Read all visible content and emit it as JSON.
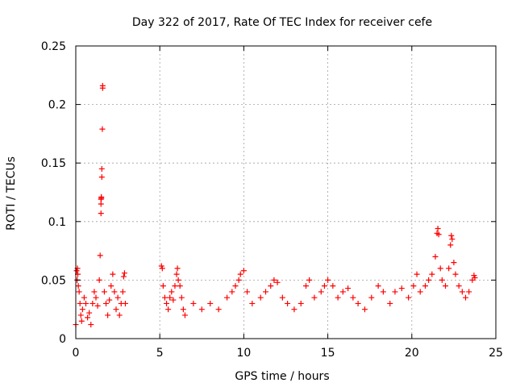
{
  "chart_data": {
    "type": "scatter",
    "title": "Day 322 of 2017, Rate Of TEC Index for receiver cefe",
    "xlabel": "GPS time / hours",
    "ylabel": "ROTI / TECUs",
    "xlim": [
      0,
      25
    ],
    "ylim": [
      0,
      0.25
    ],
    "xticks": [
      0,
      5,
      10,
      15,
      20,
      25
    ],
    "xtick_labels": [
      "0",
      "5",
      "10",
      "15",
      "20",
      "25"
    ],
    "yticks": [
      0,
      0.05,
      0.1,
      0.15,
      0.2,
      0.25
    ],
    "ytick_labels": [
      "0",
      "0.05",
      "0.1",
      "0.15",
      "0.2",
      "0.25"
    ],
    "grid": true,
    "marker": "+",
    "color": "#ff0000",
    "series": [
      {
        "name": "ROTI",
        "points": [
          [
            0.0,
            0.012
          ],
          [
            0.05,
            0.058
          ],
          [
            0.08,
            0.05
          ],
          [
            0.1,
            0.06
          ],
          [
            0.12,
            0.055
          ],
          [
            0.15,
            0.045
          ],
          [
            0.2,
            0.04
          ],
          [
            0.25,
            0.03
          ],
          [
            0.3,
            0.02
          ],
          [
            0.35,
            0.015
          ],
          [
            0.4,
            0.025
          ],
          [
            0.5,
            0.035
          ],
          [
            0.6,
            0.03
          ],
          [
            0.7,
            0.018
          ],
          [
            0.8,
            0.022
          ],
          [
            0.9,
            0.012
          ],
          [
            1.0,
            0.03
          ],
          [
            1.1,
            0.04
          ],
          [
            1.2,
            0.035
          ],
          [
            1.3,
            0.028
          ],
          [
            1.4,
            0.05
          ],
          [
            1.45,
            0.071
          ],
          [
            1.5,
            0.107
          ],
          [
            1.5,
            0.115
          ],
          [
            1.5,
            0.119
          ],
          [
            1.52,
            0.12
          ],
          [
            1.52,
            0.121
          ],
          [
            1.55,
            0.138
          ],
          [
            1.55,
            0.145
          ],
          [
            1.58,
            0.179
          ],
          [
            1.6,
            0.214
          ],
          [
            1.6,
            0.216
          ],
          [
            1.7,
            0.04
          ],
          [
            1.8,
            0.03
          ],
          [
            1.9,
            0.02
          ],
          [
            2.0,
            0.033
          ],
          [
            2.1,
            0.045
          ],
          [
            2.2,
            0.055
          ],
          [
            2.3,
            0.04
          ],
          [
            2.4,
            0.025
          ],
          [
            2.5,
            0.035
          ],
          [
            2.6,
            0.02
          ],
          [
            2.7,
            0.03
          ],
          [
            2.8,
            0.04
          ],
          [
            2.85,
            0.053
          ],
          [
            2.9,
            0.056
          ],
          [
            2.95,
            0.03
          ],
          [
            5.1,
            0.062
          ],
          [
            5.15,
            0.06
          ],
          [
            5.2,
            0.045
          ],
          [
            5.3,
            0.035
          ],
          [
            5.4,
            0.03
          ],
          [
            5.5,
            0.025
          ],
          [
            5.6,
            0.035
          ],
          [
            5.7,
            0.04
          ],
          [
            5.8,
            0.033
          ],
          [
            5.9,
            0.045
          ],
          [
            6.0,
            0.055
          ],
          [
            6.05,
            0.06
          ],
          [
            6.1,
            0.05
          ],
          [
            6.2,
            0.045
          ],
          [
            6.3,
            0.035
          ],
          [
            6.4,
            0.025
          ],
          [
            6.5,
            0.02
          ],
          [
            7.0,
            0.03
          ],
          [
            7.5,
            0.025
          ],
          [
            8.0,
            0.03
          ],
          [
            8.5,
            0.025
          ],
          [
            9.0,
            0.035
          ],
          [
            9.3,
            0.04
          ],
          [
            9.5,
            0.045
          ],
          [
            9.7,
            0.05
          ],
          [
            9.8,
            0.055
          ],
          [
            10.0,
            0.058
          ],
          [
            10.2,
            0.04
          ],
          [
            10.5,
            0.03
          ],
          [
            11.0,
            0.035
          ],
          [
            11.3,
            0.04
          ],
          [
            11.6,
            0.045
          ],
          [
            11.8,
            0.05
          ],
          [
            12.0,
            0.048
          ],
          [
            12.3,
            0.035
          ],
          [
            12.6,
            0.03
          ],
          [
            13.0,
            0.025
          ],
          [
            13.4,
            0.03
          ],
          [
            13.7,
            0.045
          ],
          [
            13.9,
            0.05
          ],
          [
            14.2,
            0.035
          ],
          [
            14.6,
            0.04
          ],
          [
            14.8,
            0.045
          ],
          [
            15.0,
            0.05
          ],
          [
            15.3,
            0.045
          ],
          [
            15.6,
            0.035
          ],
          [
            15.9,
            0.04
          ],
          [
            16.2,
            0.043
          ],
          [
            16.5,
            0.035
          ],
          [
            16.8,
            0.03
          ],
          [
            17.2,
            0.025
          ],
          [
            17.6,
            0.035
          ],
          [
            18.0,
            0.045
          ],
          [
            18.3,
            0.04
          ],
          [
            18.7,
            0.03
          ],
          [
            19.0,
            0.04
          ],
          [
            19.4,
            0.043
          ],
          [
            19.8,
            0.035
          ],
          [
            20.1,
            0.045
          ],
          [
            20.3,
            0.055
          ],
          [
            20.5,
            0.04
          ],
          [
            20.8,
            0.045
          ],
          [
            21.0,
            0.05
          ],
          [
            21.2,
            0.055
          ],
          [
            21.4,
            0.07
          ],
          [
            21.5,
            0.09
          ],
          [
            21.55,
            0.094
          ],
          [
            21.6,
            0.089
          ],
          [
            21.7,
            0.06
          ],
          [
            21.8,
            0.05
          ],
          [
            22.0,
            0.045
          ],
          [
            22.2,
            0.06
          ],
          [
            22.3,
            0.08
          ],
          [
            22.35,
            0.088
          ],
          [
            22.4,
            0.085
          ],
          [
            22.5,
            0.065
          ],
          [
            22.6,
            0.055
          ],
          [
            22.8,
            0.045
          ],
          [
            23.0,
            0.04
          ],
          [
            23.2,
            0.035
          ],
          [
            23.4,
            0.04
          ],
          [
            23.6,
            0.05
          ],
          [
            23.7,
            0.054
          ],
          [
            23.75,
            0.052
          ]
        ]
      }
    ]
  }
}
